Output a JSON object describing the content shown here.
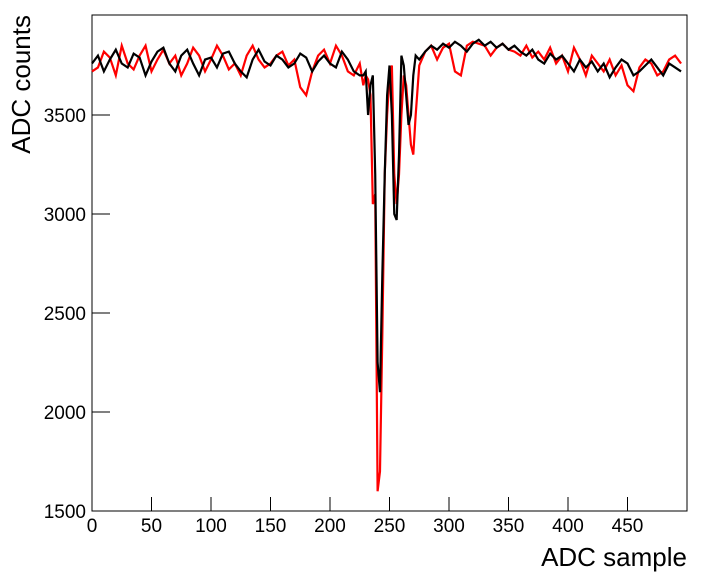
{
  "chart_data": {
    "type": "line",
    "x_label": "ADC sample",
    "y_label": "ADC counts",
    "x": [
      0,
      5,
      10,
      15,
      20,
      25,
      30,
      35,
      40,
      45,
      50,
      55,
      60,
      65,
      70,
      75,
      80,
      85,
      90,
      95,
      100,
      105,
      110,
      115,
      120,
      125,
      130,
      135,
      140,
      145,
      150,
      155,
      160,
      165,
      170,
      175,
      180,
      185,
      190,
      195,
      200,
      205,
      210,
      215,
      220,
      225,
      228,
      230,
      232,
      234,
      236,
      238,
      240,
      242,
      244,
      246,
      248,
      250,
      252,
      254,
      256,
      258,
      260,
      262,
      264,
      266,
      268,
      270,
      272,
      275,
      280,
      285,
      290,
      295,
      300,
      305,
      310,
      315,
      320,
      325,
      330,
      335,
      340,
      345,
      350,
      355,
      360,
      365,
      370,
      375,
      380,
      385,
      390,
      395,
      400,
      405,
      410,
      415,
      420,
      425,
      430,
      435,
      440,
      445,
      450,
      455,
      460,
      465,
      470,
      475,
      480,
      485,
      490,
      495
    ],
    "series": [
      {
        "name": "red",
        "color": "#ff0000",
        "values": [
          3720,
          3740,
          3820,
          3790,
          3700,
          3850,
          3760,
          3730,
          3800,
          3850,
          3720,
          3780,
          3830,
          3760,
          3800,
          3700,
          3760,
          3840,
          3800,
          3720,
          3780,
          3850,
          3800,
          3730,
          3760,
          3700,
          3800,
          3850,
          3780,
          3740,
          3760,
          3800,
          3820,
          3750,
          3780,
          3640,
          3600,
          3720,
          3800,
          3830,
          3760,
          3850,
          3800,
          3720,
          3700,
          3760,
          3650,
          3700,
          3680,
          3600,
          3050,
          3100,
          1600,
          1700,
          2400,
          3200,
          3500,
          3700,
          3750,
          3200,
          3050,
          3200,
          3500,
          3700,
          3650,
          3500,
          3350,
          3300,
          3500,
          3750,
          3820,
          3850,
          3780,
          3840,
          3860,
          3720,
          3700,
          3850,
          3870,
          3860,
          3850,
          3800,
          3840,
          3860,
          3830,
          3820,
          3800,
          3850,
          3790,
          3820,
          3780,
          3840,
          3760,
          3800,
          3720,
          3840,
          3780,
          3700,
          3800,
          3760,
          3720,
          3780,
          3700,
          3750,
          3650,
          3620,
          3740,
          3780,
          3760,
          3700,
          3720,
          3780,
          3800,
          3760
        ]
      },
      {
        "name": "black",
        "color": "#000000",
        "values": [
          3760,
          3800,
          3720,
          3780,
          3830,
          3760,
          3740,
          3810,
          3790,
          3700,
          3770,
          3820,
          3840,
          3760,
          3720,
          3800,
          3830,
          3760,
          3700,
          3780,
          3790,
          3740,
          3810,
          3820,
          3760,
          3720,
          3690,
          3780,
          3830,
          3770,
          3750,
          3800,
          3780,
          3740,
          3760,
          3810,
          3790,
          3720,
          3770,
          3800,
          3760,
          3740,
          3820,
          3780,
          3720,
          3700,
          3700,
          3720,
          3500,
          3650,
          3700,
          3200,
          2250,
          2100,
          2700,
          3200,
          3600,
          3750,
          3500,
          3000,
          2970,
          3300,
          3800,
          3750,
          3600,
          3450,
          3500,
          3700,
          3800,
          3780,
          3820,
          3850,
          3830,
          3860,
          3840,
          3870,
          3850,
          3820,
          3860,
          3880,
          3850,
          3870,
          3840,
          3860,
          3830,
          3850,
          3820,
          3800,
          3830,
          3780,
          3760,
          3810,
          3780,
          3800,
          3760,
          3720,
          3780,
          3740,
          3770,
          3720,
          3760,
          3690,
          3740,
          3780,
          3760,
          3700,
          3720,
          3750,
          3780,
          3740,
          3700,
          3760,
          3740,
          3720
        ]
      }
    ],
    "xlim": [
      0,
      500
    ],
    "xticks": [
      0,
      50,
      100,
      150,
      200,
      250,
      300,
      350,
      400,
      450
    ],
    "ylim": [
      1500,
      4005
    ],
    "yticks": [
      1500,
      2000,
      2500,
      3000,
      3500
    ]
  }
}
